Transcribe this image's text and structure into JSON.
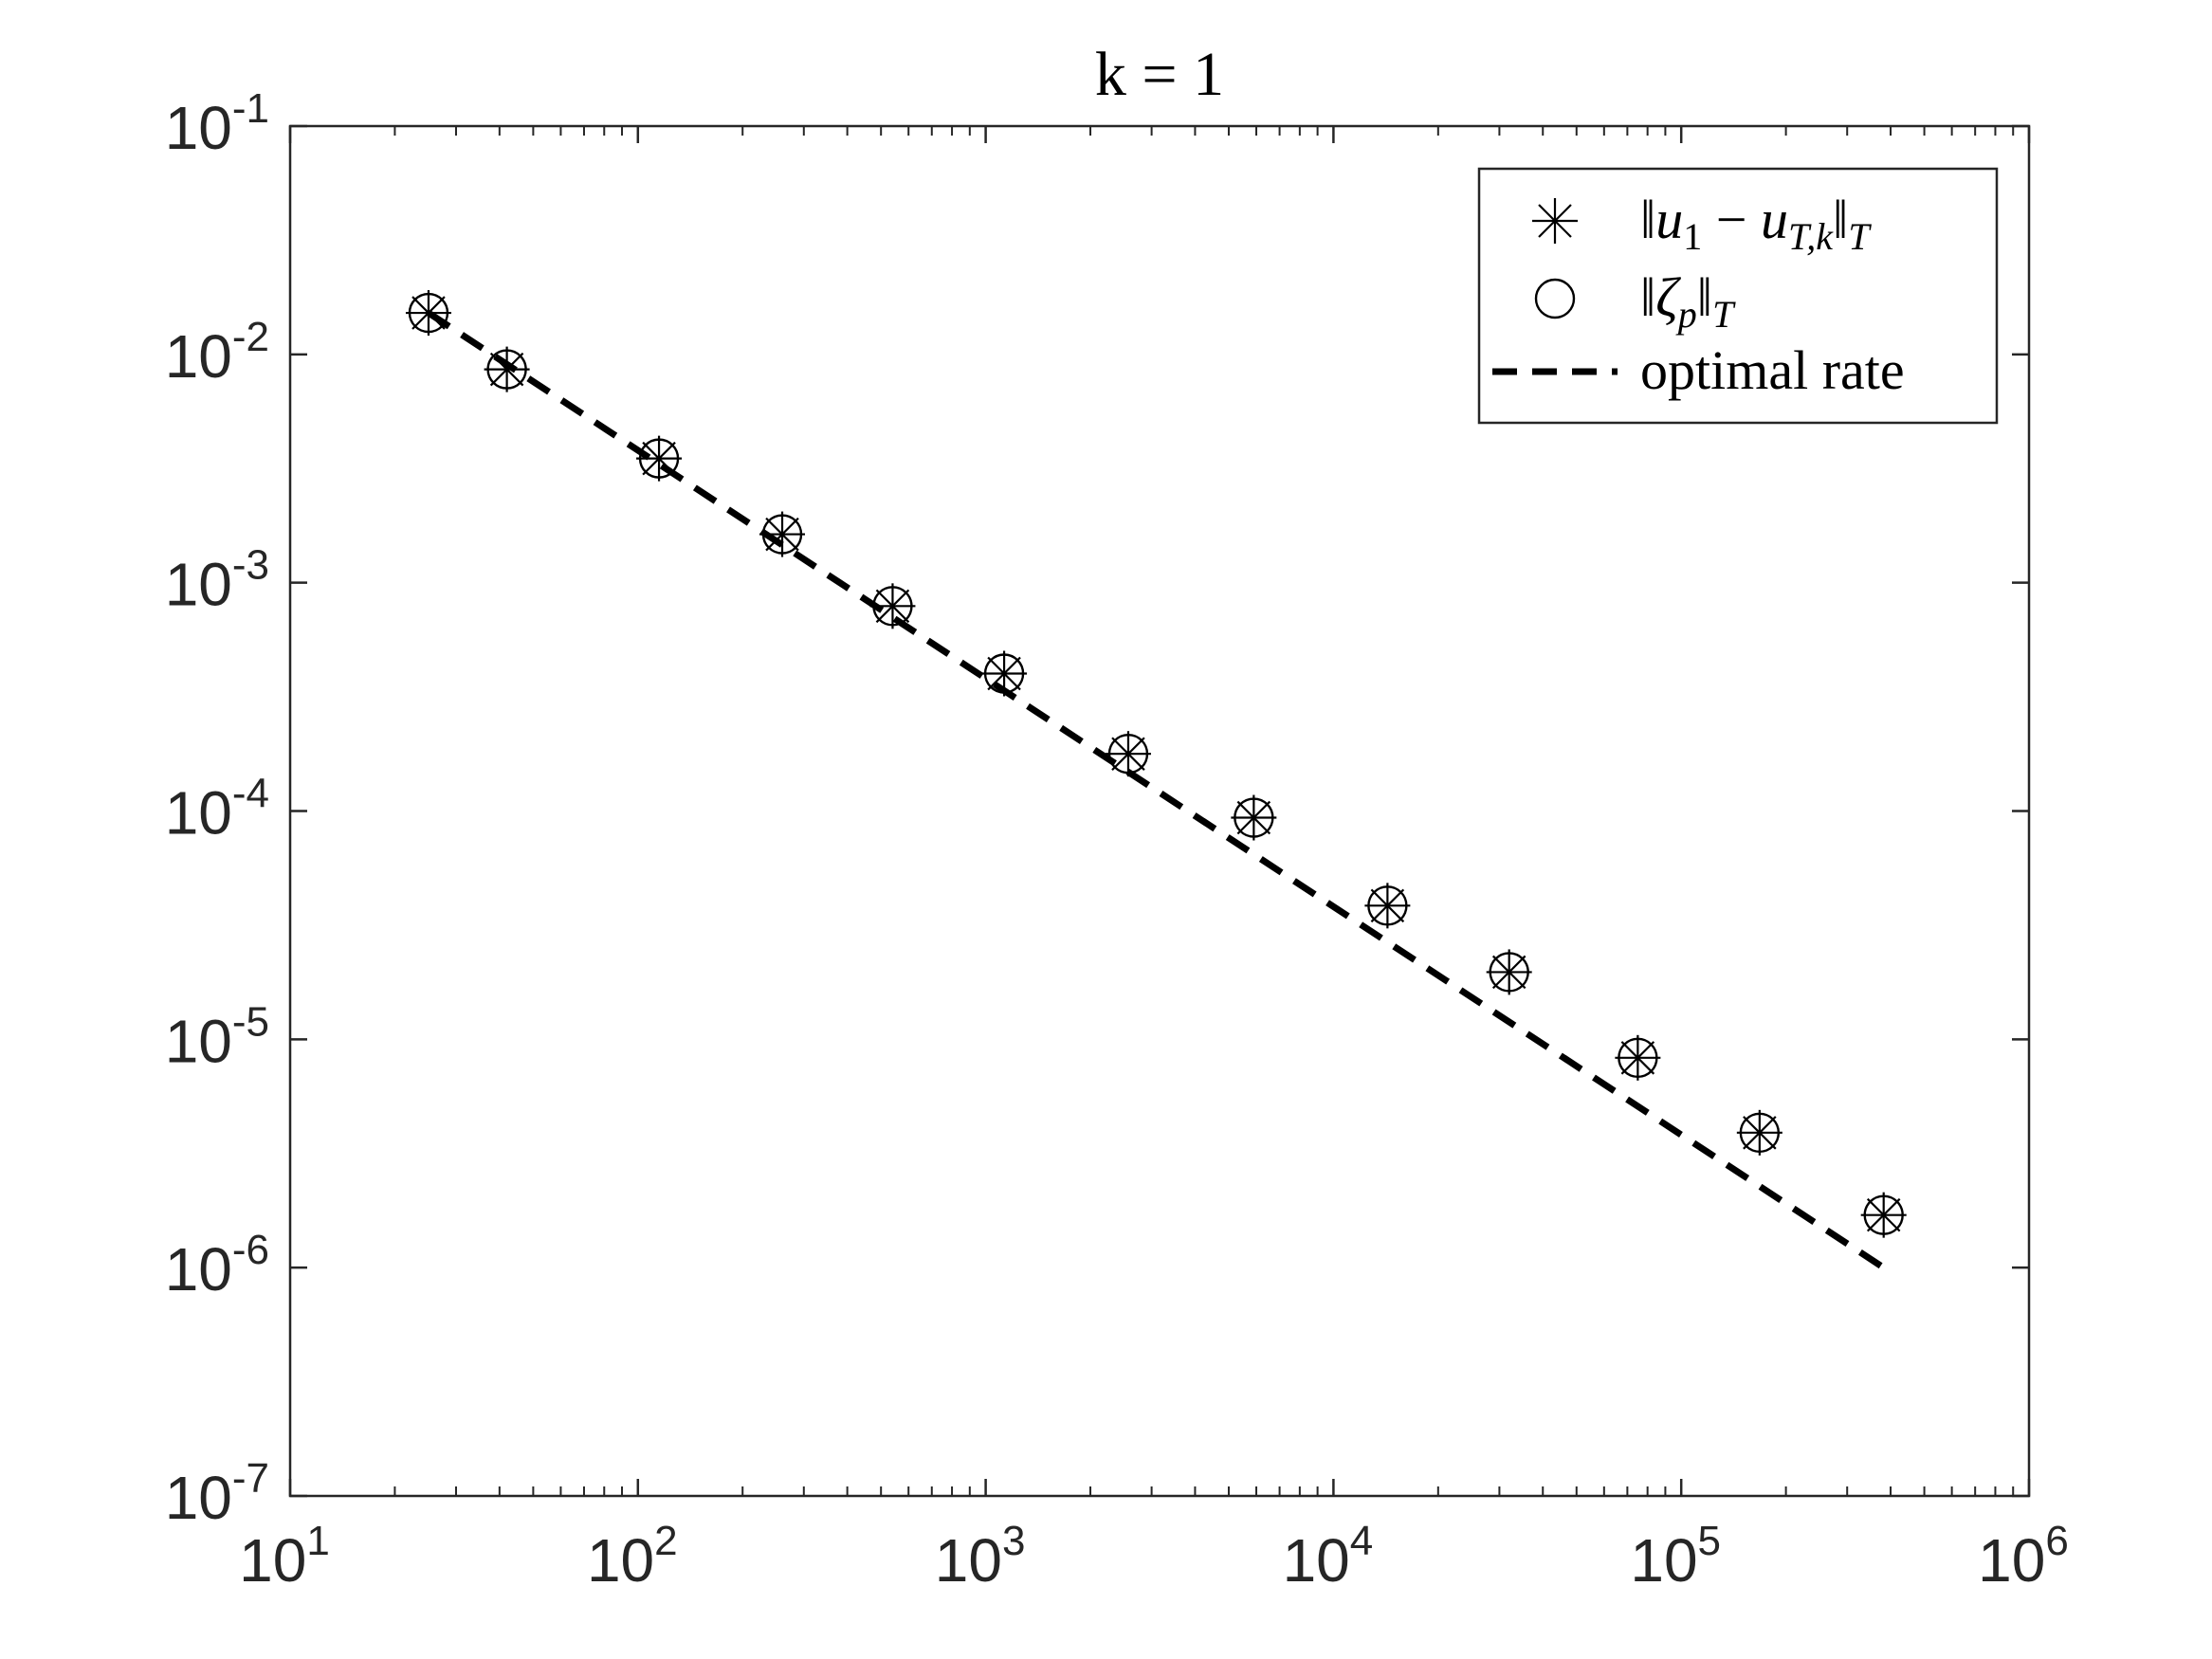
{
  "chart_data": {
    "type": "scatter",
    "title": "k = 1",
    "xlabel": "",
    "ylabel": "",
    "xscale": "log",
    "yscale": "log",
    "xlim": [
      10,
      1000000
    ],
    "ylim": [
      1e-07,
      0.1
    ],
    "x_ticks": [
      {
        "base": "10",
        "exp": "1"
      },
      {
        "base": "10",
        "exp": "2"
      },
      {
        "base": "10",
        "exp": "3"
      },
      {
        "base": "10",
        "exp": "4"
      },
      {
        "base": "10",
        "exp": "5"
      },
      {
        "base": "10",
        "exp": "6"
      }
    ],
    "y_ticks": [
      {
        "base": "10",
        "exp": "-1"
      },
      {
        "base": "10",
        "exp": "-2"
      },
      {
        "base": "10",
        "exp": "-3"
      },
      {
        "base": "10",
        "exp": "-4"
      },
      {
        "base": "10",
        "exp": "-5"
      },
      {
        "base": "10",
        "exp": "-6"
      },
      {
        "base": "10",
        "exp": "-7"
      }
    ],
    "grid": false,
    "legend_position": "top-right",
    "series": [
      {
        "name": "‖u1 − uT,k‖T",
        "marker": "asterisk",
        "x": [
          25,
          42,
          115,
          260,
          540,
          1130,
          2570,
          5900,
          14300,
          32000,
          75000,
          168000,
          382000
        ],
        "y": [
          0.0152,
          0.0086,
          0.0035,
          0.00163,
          0.00079,
          0.0004,
          0.000178,
          9.35e-05,
          3.85e-05,
          1.97e-05,
          8.3e-06,
          3.9e-06,
          1.7e-06
        ]
      },
      {
        "name": "‖ζp‖T",
        "marker": "circle",
        "x": [
          25,
          42,
          115,
          260,
          540,
          1130,
          2570,
          5900,
          14300,
          32000,
          75000,
          168000,
          382000
        ],
        "y": [
          0.0152,
          0.0086,
          0.0035,
          0.00163,
          0.00079,
          0.0004,
          0.000178,
          9.35e-05,
          3.85e-05,
          1.97e-05,
          8.3e-06,
          3.9e-06,
          1.7e-06
        ]
      },
      {
        "name": "optimal rate",
        "style": "dashed",
        "x": [
          25,
          382000
        ],
        "y": [
          0.0152,
          1e-06
        ]
      }
    ],
    "legend": [
      {
        "key": "asterisk",
        "parts": [
          {
            "t": "‖",
            "c": ""
          },
          {
            "t": "u",
            "c": "it"
          },
          {
            "t": "1",
            "c": "sub"
          },
          {
            "t": " − ",
            "c": ""
          },
          {
            "t": "u",
            "c": "it"
          },
          {
            "t": "T,k",
            "c": "sub it"
          },
          {
            "t": "‖",
            "c": ""
          },
          {
            "t": "T",
            "c": "sub it"
          }
        ]
      },
      {
        "key": "circle",
        "parts": [
          {
            "t": "‖",
            "c": ""
          },
          {
            "t": "ζ",
            "c": "it"
          },
          {
            "t": "p",
            "c": "sub it"
          },
          {
            "t": "‖",
            "c": ""
          },
          {
            "t": "T",
            "c": "sub it"
          }
        ]
      },
      {
        "key": "dashed",
        "parts": [
          {
            "t": "optimal rate",
            "c": ""
          }
        ]
      }
    ],
    "colors": {
      "marker": "#000000",
      "axes": "#262626",
      "background": "#ffffff"
    }
  }
}
